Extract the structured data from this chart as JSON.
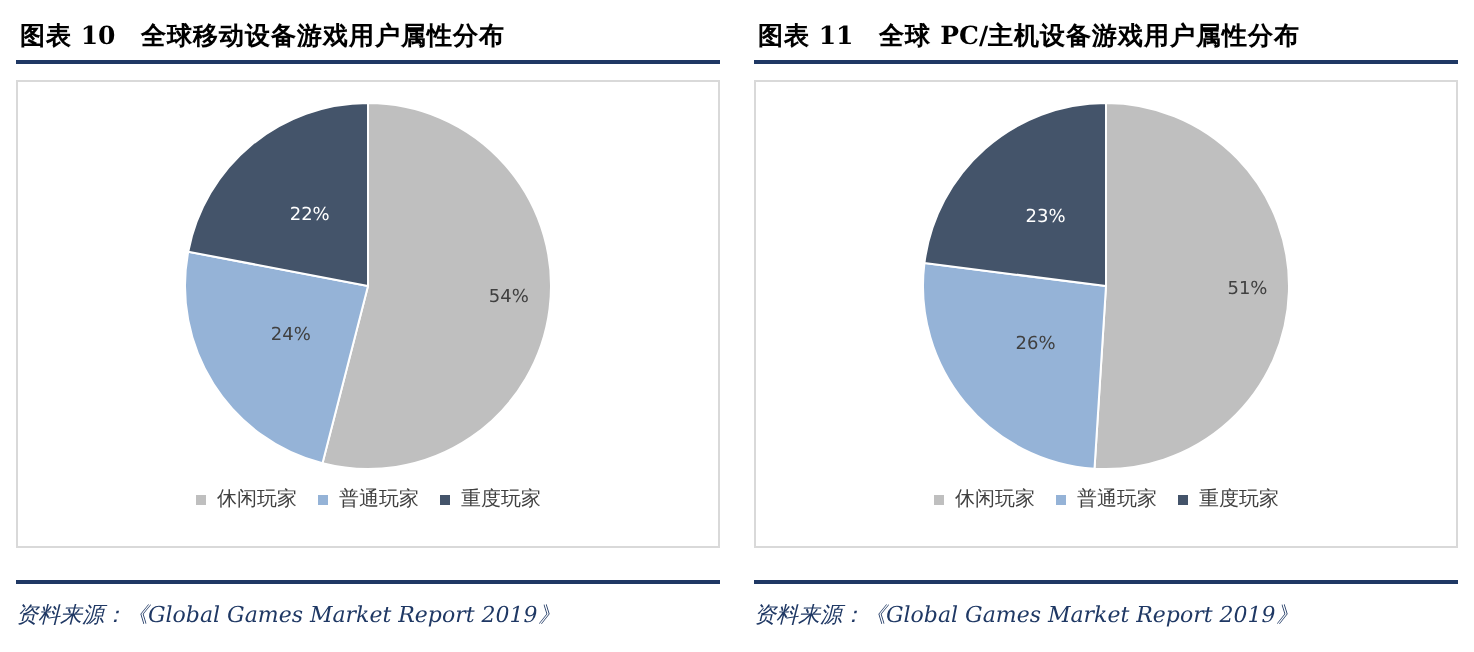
{
  "chart_data": [
    {
      "type": "pie",
      "title": "图表 10　全球移动设备游戏用户属性分布",
      "categories": [
        "休闲玩家",
        "普通玩家",
        "重度玩家"
      ],
      "values": [
        54,
        24,
        22
      ],
      "value_labels": [
        "54%",
        "24%",
        "22%"
      ],
      "colors": [
        "#bfbfbf",
        "#95b3d7",
        "#44546a"
      ],
      "legend": "bottom",
      "annotations": [
        "资料来源：《Global Games Market Report 2019》"
      ]
    },
    {
      "type": "pie",
      "title": "图表 11　全球 PC/主机设备游戏用户属性分布",
      "categories": [
        "休闲玩家",
        "普通玩家",
        "重度玩家"
      ],
      "values": [
        51,
        26,
        23
      ],
      "value_labels": [
        "51%",
        "26%",
        "23%"
      ],
      "colors": [
        "#bfbfbf",
        "#95b3d7",
        "#44546a"
      ],
      "legend": "bottom",
      "annotations": [
        "资料来源：《Global Games Market Report 2019》"
      ]
    }
  ]
}
